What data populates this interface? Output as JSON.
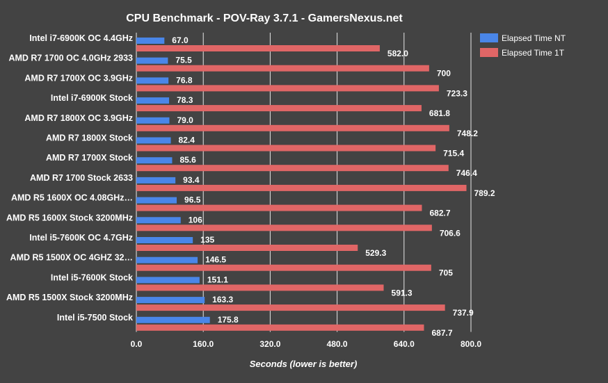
{
  "chart_data": {
    "type": "bar",
    "orientation": "horizontal",
    "title": "CPU Benchmark - POV-Ray 3.7.1 - GamersNexus.net",
    "xlabel": "Seconds (lower is better)",
    "ylabel": "",
    "xlim": [
      0,
      800
    ],
    "xticks": [
      "0.0",
      "160.0",
      "320.0",
      "480.0",
      "640.0",
      "800.0"
    ],
    "grid": true,
    "legend_position": "top-right",
    "categories": [
      "Intel i7-6900K OC 4.4GHz",
      "AMD R7 1700 OC 4.0GHz 2933",
      "AMD R7 1700X OC 3.9GHz",
      "Intel i7-6900K Stock",
      "AMD R7 1800X OC 3.9GHz",
      "AMD R7 1800X Stock",
      "AMD R7 1700X Stock",
      "AMD R7 1700 Stock 2633",
      "AMD R5 1600X OC 4.08GHz…",
      "AMD R5 1600X Stock 3200MHz",
      "Intel i5-7600K OC 4.7GHz",
      "AMD R5 1500X OC 4GHZ 32…",
      "Intel i5-7600K Stock",
      "AMD R5 1500X Stock 3200MHz",
      "Intel i5-7500 Stock"
    ],
    "series": [
      {
        "name": "Elapsed Time NT",
        "color": "#4a86e8",
        "values": [
          67.0,
          75.5,
          76.8,
          78.3,
          79.0,
          82.4,
          85.6,
          93.4,
          96.5,
          106,
          135,
          146.5,
          151.1,
          163.3,
          175.8
        ],
        "labels": [
          "67.0",
          "75.5",
          "76.8",
          "78.3",
          "79.0",
          "82.4",
          "85.6",
          "93.4",
          "96.5",
          "106",
          "135",
          "146.5",
          "151.1",
          "163.3",
          "175.8"
        ]
      },
      {
        "name": "Elapsed Time 1T",
        "color": "#e06666",
        "values": [
          582.0,
          700,
          723.3,
          681.8,
          748.2,
          715.4,
          746.4,
          789.2,
          682.7,
          706.6,
          529.3,
          705,
          591.3,
          737.9,
          687.7
        ],
        "labels": [
          "582.0",
          "700",
          "723.3",
          "681.8",
          "748.2",
          "715.4",
          "746.4",
          "789.2",
          "682.7",
          "706.6",
          "529.3",
          "705",
          "591.3",
          "737.9",
          "687.7"
        ]
      }
    ]
  }
}
